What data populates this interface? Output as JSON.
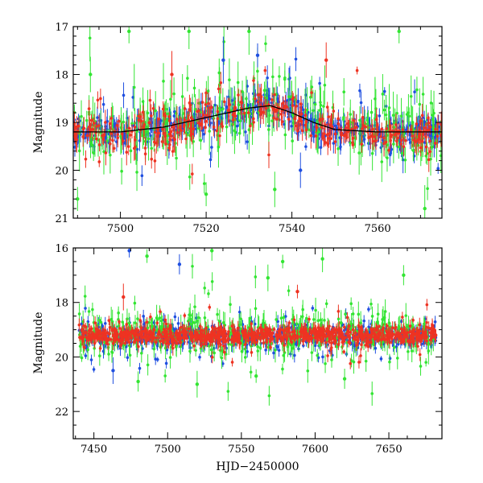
{
  "chart_data": [
    {
      "type": "scatter",
      "panel": "top",
      "title": "",
      "xlabel": "",
      "ylabel": "Magnitude",
      "xlim": [
        7489,
        7575
      ],
      "ylim": [
        21,
        17
      ],
      "y_inverted": true,
      "xticks": [
        7500,
        7520,
        7540,
        7560
      ],
      "yticks": [
        17,
        18,
        19,
        20,
        21
      ],
      "colors": {
        "blue": "#1f4fe0",
        "green": "#33e533",
        "red": "#ee3322",
        "model": "#000000"
      },
      "series": [
        {
          "name": "blue",
          "color": "#1f4fe0",
          "baseline": 19.1,
          "scatter": 0.25
        },
        {
          "name": "green",
          "color": "#33e533",
          "baseline": 19.0,
          "scatter": 0.55
        },
        {
          "name": "red",
          "color": "#ee3322",
          "baseline": 19.15,
          "scatter": 0.3
        }
      ],
      "model_curve": {
        "x": [
          7489,
          7500,
          7505,
          7510,
          7515,
          7520,
          7525,
          7530,
          7535,
          7540,
          7545,
          7550,
          7560,
          7575
        ],
        "y": [
          19.2,
          19.2,
          19.15,
          19.1,
          19.0,
          18.9,
          18.8,
          18.7,
          18.65,
          18.8,
          19.0,
          19.15,
          19.2,
          19.2
        ]
      },
      "outliers": [
        {
          "series": "green",
          "x": 7502,
          "y": 17.1
        },
        {
          "series": "green",
          "x": 7516,
          "y": 17.1
        },
        {
          "series": "green",
          "x": 7530,
          "y": 17.1
        },
        {
          "series": "green",
          "x": 7565,
          "y": 17.1
        },
        {
          "series": "green",
          "x": 7493,
          "y": 18.0
        },
        {
          "series": "blue",
          "x": 7524,
          "y": 17.7
        },
        {
          "series": "blue",
          "x": 7532,
          "y": 17.6
        },
        {
          "series": "red",
          "x": 7548,
          "y": 17.7
        },
        {
          "series": "red",
          "x": 7512,
          "y": 18.0
        },
        {
          "series": "green",
          "x": 7520,
          "y": 20.5
        },
        {
          "series": "green",
          "x": 7536,
          "y": 20.4
        },
        {
          "series": "green",
          "x": 7571,
          "y": 20.8
        },
        {
          "series": "green",
          "x": 7490,
          "y": 20.6
        },
        {
          "series": "blue",
          "x": 7542,
          "y": 20.0
        }
      ]
    },
    {
      "type": "scatter",
      "panel": "bottom",
      "title": "",
      "xlabel": "HJD−2450000",
      "ylabel": "Magnitude",
      "xlim": [
        7436,
        7686
      ],
      "ylim": [
        23,
        16
      ],
      "y_inverted": true,
      "xticks": [
        7450,
        7500,
        7550,
        7600,
        7650
      ],
      "yticks": [
        16,
        18,
        20,
        22
      ],
      "colors": {
        "blue": "#1f4fe0",
        "green": "#33e533",
        "red": "#ee3322"
      },
      "series": [
        {
          "name": "blue",
          "color": "#1f4fe0",
          "baseline": 19.25,
          "scatter": 0.3
        },
        {
          "name": "green",
          "color": "#33e533",
          "baseline": 19.15,
          "scatter": 0.6
        },
        {
          "name": "red",
          "color": "#ee3322",
          "baseline": 19.2,
          "scatter": 0.25
        }
      ],
      "data_range_x": [
        7440,
        7682
      ],
      "outliers": [
        {
          "series": "green",
          "x": 7486,
          "y": 16.3
        },
        {
          "series": "green",
          "x": 7530,
          "y": 16.1
        },
        {
          "series": "green",
          "x": 7605,
          "y": 16.4
        },
        {
          "series": "green",
          "x": 7578,
          "y": 16.5
        },
        {
          "series": "green",
          "x": 7660,
          "y": 17.0
        },
        {
          "series": "green",
          "x": 7568,
          "y": 17.1
        },
        {
          "series": "blue",
          "x": 7474,
          "y": 16.1
        },
        {
          "series": "blue",
          "x": 7508,
          "y": 16.6
        },
        {
          "series": "red",
          "x": 7470,
          "y": 17.8
        },
        {
          "series": "red",
          "x": 7588,
          "y": 17.6
        },
        {
          "series": "green",
          "x": 7480,
          "y": 20.9
        },
        {
          "series": "green",
          "x": 7520,
          "y": 21.0
        },
        {
          "series": "green",
          "x": 7560,
          "y": 20.7
        },
        {
          "series": "green",
          "x": 7620,
          "y": 20.8
        },
        {
          "series": "blue",
          "x": 7463,
          "y": 20.5
        }
      ]
    }
  ]
}
